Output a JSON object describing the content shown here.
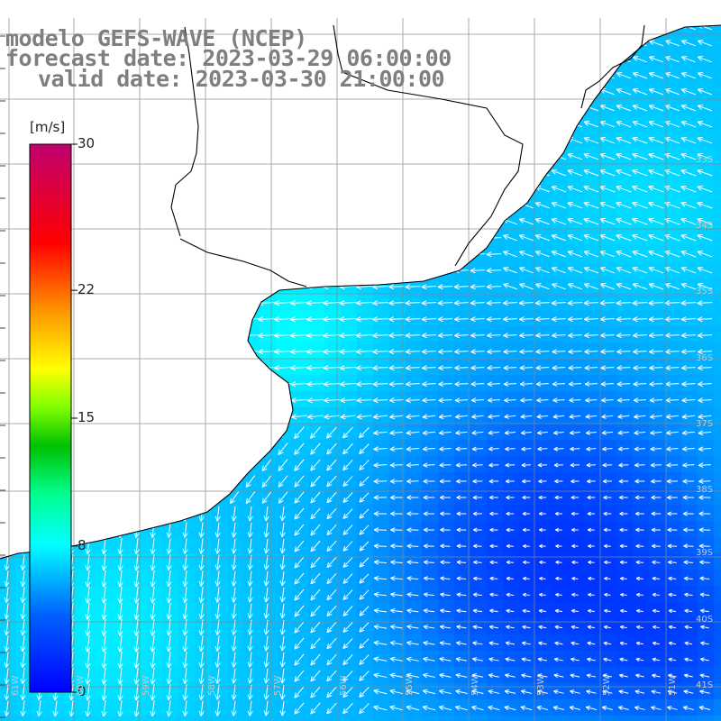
{
  "title": {
    "line1": "modelo GEFS-WAVE (NCEP)",
    "line2": "forecast date: 2023-03-29 06:00:00",
    "line3": "valid date: 2023-03-30 21:00:00"
  },
  "colorbar": {
    "unit": "[m/s]",
    "min": 0,
    "max": 30,
    "ticks": [
      {
        "label": "30",
        "value": 30
      },
      {
        "label": "22",
        "value": 22
      },
      {
        "label": "15",
        "value": 15
      },
      {
        "label": "8",
        "value": 8
      },
      {
        "label": "0",
        "value": 0
      }
    ],
    "colors": [
      "#0000ff",
      "#0080ff",
      "#00ffff",
      "#00ff80",
      "#00c000",
      "#80ff00",
      "#ffff00",
      "#ff8000",
      "#ff0000",
      "#c00060"
    ]
  },
  "axes": {
    "lat_labels": [
      "33S",
      "34S",
      "35S",
      "36S",
      "37S",
      "38S",
      "39S",
      "40S",
      "41S"
    ],
    "lon_labels": [
      "61W",
      "60W",
      "59W",
      "58W",
      "57W",
      "56W",
      "55W",
      "54W",
      "53W",
      "52W",
      "51W"
    ]
  },
  "colors": {
    "land": "#ffffff",
    "coastline": "#000000",
    "grid": "#888888",
    "arrows": "#ffffff",
    "title": "#7f7f7f"
  }
}
